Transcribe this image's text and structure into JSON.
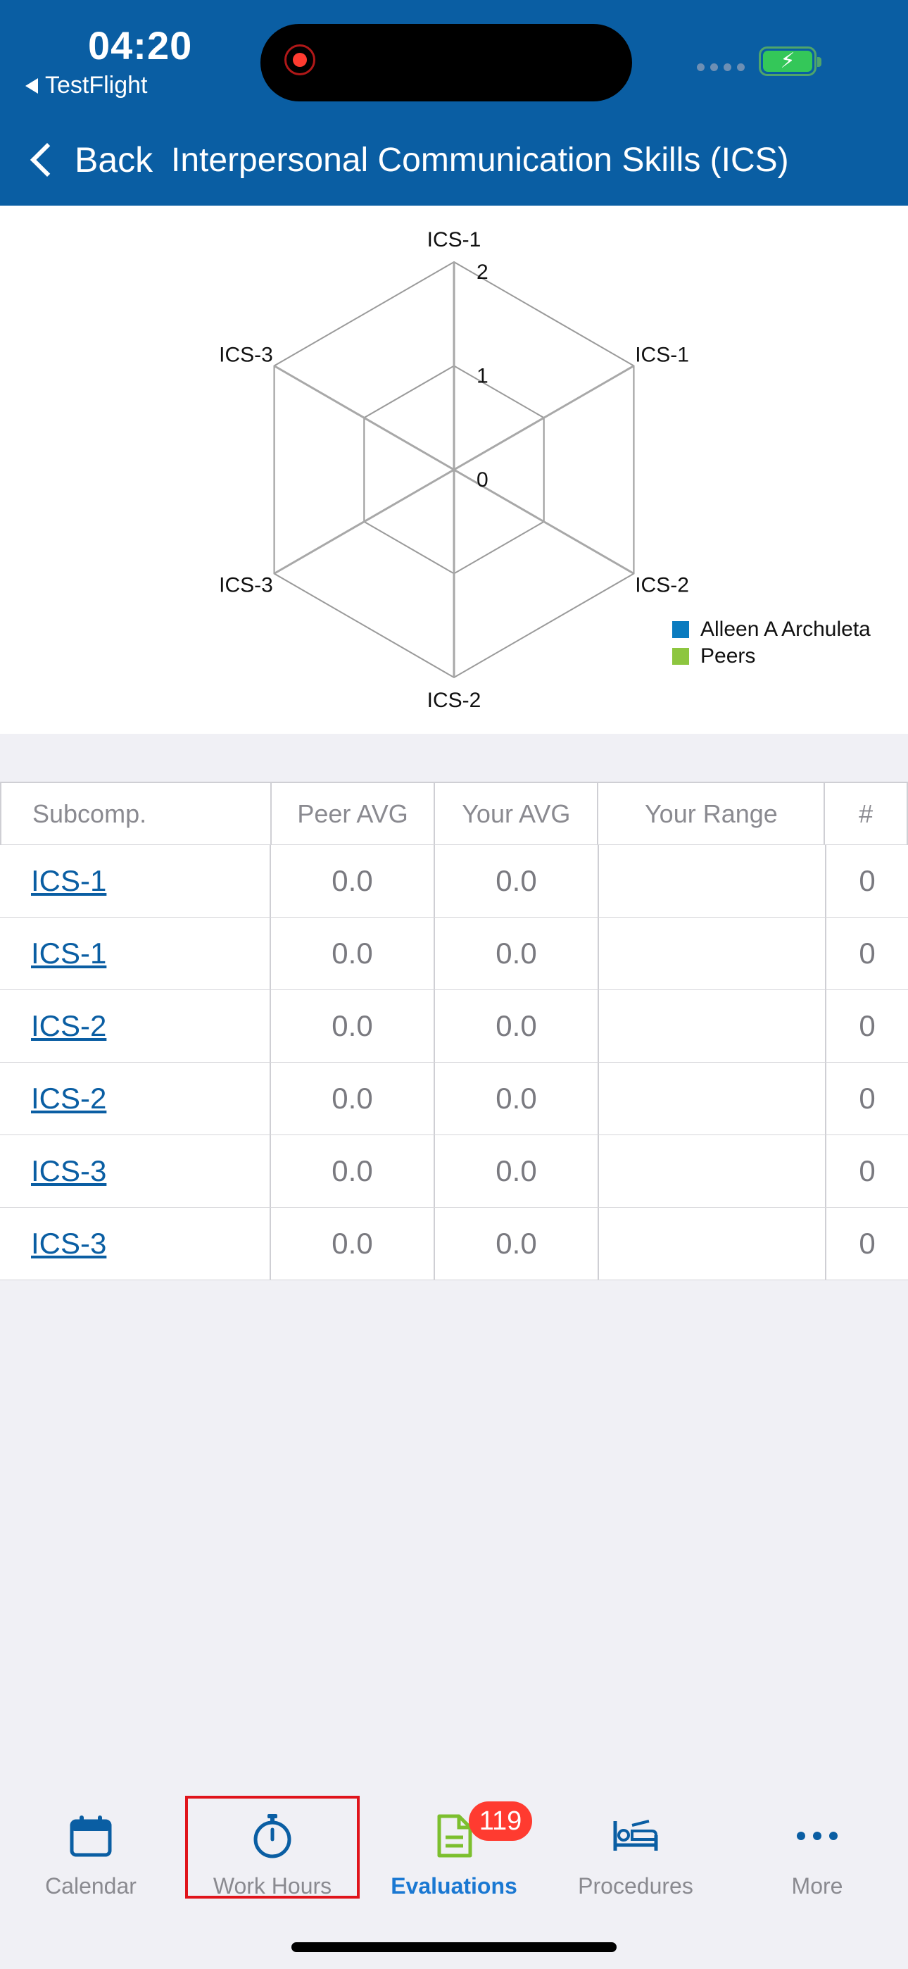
{
  "status_bar": {
    "time": "04:20",
    "back_app_label": "TestFlight"
  },
  "nav": {
    "back_label": "Back",
    "title": "Interpersonal Communication Skills (ICS)"
  },
  "chart_data": {
    "type": "radar",
    "axes": [
      "ICS-1",
      "ICS-1",
      "ICS-2",
      "ICS-2",
      "ICS-3",
      "ICS-3"
    ],
    "radial_ticks": [
      "0",
      "1",
      "2"
    ],
    "rmax": 2,
    "series": [
      {
        "name": "Alleen A Archuleta",
        "color": "#0a7bbf",
        "values": [
          0,
          0,
          0,
          0,
          0,
          0
        ]
      },
      {
        "name": "Peers",
        "color": "#8dc63f",
        "values": [
          0,
          0,
          0,
          0,
          0,
          0
        ]
      }
    ],
    "legend_position": "bottom-right"
  },
  "table": {
    "headers": [
      "Subcomp.",
      "Peer AVG",
      "Your AVG",
      "Your Range",
      "#"
    ],
    "rows": [
      {
        "sub": "ICS-1",
        "peer": "0.0",
        "your": "0.0",
        "range": "",
        "count": "0"
      },
      {
        "sub": "ICS-1",
        "peer": "0.0",
        "your": "0.0",
        "range": "",
        "count": "0"
      },
      {
        "sub": "ICS-2",
        "peer": "0.0",
        "your": "0.0",
        "range": "",
        "count": "0"
      },
      {
        "sub": "ICS-2",
        "peer": "0.0",
        "your": "0.0",
        "range": "",
        "count": "0"
      },
      {
        "sub": "ICS-3",
        "peer": "0.0",
        "your": "0.0",
        "range": "",
        "count": "0"
      },
      {
        "sub": "ICS-3",
        "peer": "0.0",
        "your": "0.0",
        "range": "",
        "count": "0"
      }
    ]
  },
  "tabbar": {
    "tabs": [
      {
        "label": "Calendar",
        "icon": "calendar-icon"
      },
      {
        "label": "Work Hours",
        "icon": "stopwatch-icon"
      },
      {
        "label": "Evaluations",
        "icon": "document-icon"
      },
      {
        "label": "Procedures",
        "icon": "procedures-bed-icon"
      },
      {
        "label": "More",
        "icon": "more-dots-icon"
      }
    ],
    "active": "Evaluations",
    "evaluations_badge": "119"
  },
  "colors": {
    "header_bg": "#0a5ea3",
    "accent": "#1a78d2",
    "badge": "#ff3b30",
    "highlight_box": "#e0141b"
  }
}
